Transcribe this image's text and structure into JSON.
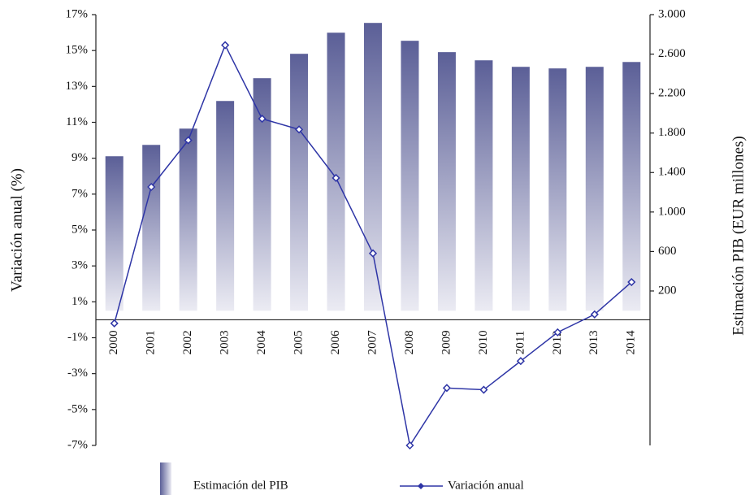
{
  "chart_data": {
    "type": "bar_line",
    "ylabel": "Variación anual (%)",
    "y2label": "Estimación PIB (EUR millones)",
    "categories": [
      "2000",
      "2001",
      "2002",
      "2003",
      "2004",
      "2005",
      "2006",
      "2007",
      "2008",
      "2009",
      "2010",
      "2011",
      "2012",
      "2013",
      "2014"
    ],
    "series": [
      {
        "name": "Estimación del PIB",
        "type": "bar",
        "axis": "y2",
        "color": "#5b5f97",
        "values": [
          1565,
          1680,
          1845,
          2125,
          2356,
          2603,
          2817,
          2916,
          2735,
          2620,
          2537,
          2471,
          2455,
          2471,
          2520
        ]
      },
      {
        "name": "Variación anual",
        "type": "line",
        "axis": "y",
        "color": "#2e35a6",
        "values": [
          -0.2,
          7.4,
          10.0,
          15.3,
          11.2,
          10.6,
          7.9,
          3.7,
          -7.0,
          -3.8,
          -3.9,
          -2.3,
          -0.7,
          0.3,
          2.1
        ]
      }
    ],
    "ylim": [
      -7,
      17
    ],
    "yticks": [
      {
        "value": 17,
        "label": "17%"
      },
      {
        "value": 15,
        "label": "15%"
      },
      {
        "value": 13,
        "label": "13%"
      },
      {
        "value": 11,
        "label": "11%"
      },
      {
        "value": 9,
        "label": "9%"
      },
      {
        "value": 7,
        "label": "7%"
      },
      {
        "value": 5,
        "label": "5%"
      },
      {
        "value": 3,
        "label": "3%"
      },
      {
        "value": 1,
        "label": "1%"
      },
      {
        "value": -1,
        "label": "-1%"
      },
      {
        "value": -3,
        "label": "-3%"
      },
      {
        "value": -5,
        "label": "-5%"
      },
      {
        "value": -7,
        "label": "-7%"
      }
    ],
    "y2lim": [
      -1365,
      3000
    ],
    "y2ticks": [
      {
        "value": 3000,
        "label": "3.000"
      },
      {
        "value": 2600,
        "label": "2.600"
      },
      {
        "value": 2200,
        "label": "2.200"
      },
      {
        "value": 1800,
        "label": "1.800"
      },
      {
        "value": 1400,
        "label": "1.400"
      },
      {
        "value": 1000,
        "label": "1.000"
      },
      600,
      200
    ]
  }
}
